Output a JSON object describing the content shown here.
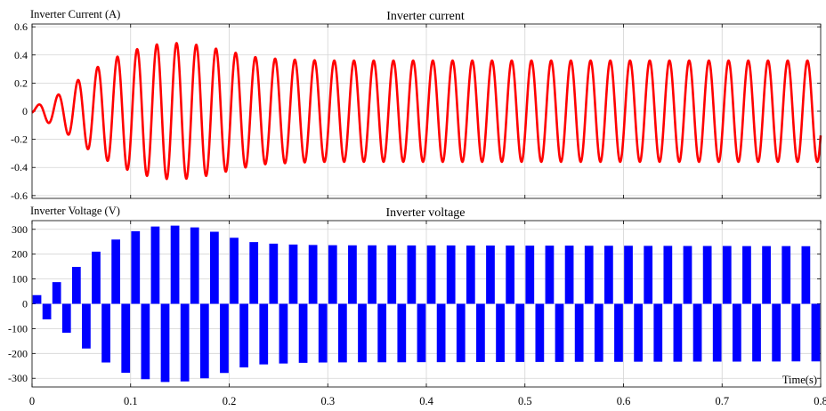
{
  "chart_data": [
    {
      "type": "line",
      "title": "Inverter current",
      "ylabel": "Inverter Current (A)",
      "xlabel": "",
      "xlim": [
        0,
        0.8
      ],
      "ylim": [
        -0.62,
        0.62
      ],
      "yticks": [
        0.6,
        0.4,
        0.2,
        0,
        -0.2,
        -0.4,
        -0.6
      ],
      "ytick_labels": [
        "0.6",
        "0.4",
        "0.2",
        "0",
        "-0.2",
        "-0.4",
        "-0.6"
      ],
      "grid": true,
      "series": [
        {
          "color": "#ff0000",
          "frequency_hz": 50,
          "waveform": "sine",
          "envelope_t": [
            0,
            0.01,
            0.03,
            0.05,
            0.07,
            0.09,
            0.11,
            0.13,
            0.15,
            0.17,
            0.19,
            0.21,
            0.23,
            0.27,
            0.3,
            0.8
          ],
          "envelope_amp": [
            0.02,
            0.06,
            0.13,
            0.24,
            0.33,
            0.4,
            0.45,
            0.48,
            0.485,
            0.47,
            0.44,
            0.41,
            0.38,
            0.365,
            0.36,
            0.36
          ]
        }
      ]
    },
    {
      "type": "line",
      "title": "Inverter voltage",
      "ylabel": "Inverter Voltage (V)",
      "xlabel": "Time(s)",
      "xlim": [
        0,
        0.8
      ],
      "ylim": [
        -335,
        335
      ],
      "yticks": [
        300,
        200,
        100,
        0,
        -100,
        -200,
        -300
      ],
      "ytick_labels": [
        "300",
        "200",
        "100",
        "0",
        "-100",
        "-200",
        "-300"
      ],
      "xticks": [
        0,
        0.1,
        0.2,
        0.3,
        0.4,
        0.5,
        0.6,
        0.7,
        0.8
      ],
      "xtick_labels": [
        "0",
        "0.1",
        "0.2",
        "0.3",
        "0.4",
        "0.5",
        "0.6",
        "0.7",
        "0.8"
      ],
      "grid": true,
      "series": [
        {
          "color": "#0000ff",
          "frequency_hz": 50,
          "waveform": "pwm",
          "envelope_t": [
            0,
            0.01,
            0.03,
            0.05,
            0.07,
            0.09,
            0.11,
            0.13,
            0.15,
            0.17,
            0.19,
            0.21,
            0.23,
            0.27,
            0.3,
            0.8
          ],
          "envelope_amp": [
            20,
            50,
            100,
            165,
            225,
            270,
            300,
            315,
            315,
            305,
            285,
            260,
            245,
            238,
            236,
            232
          ]
        }
      ]
    }
  ]
}
